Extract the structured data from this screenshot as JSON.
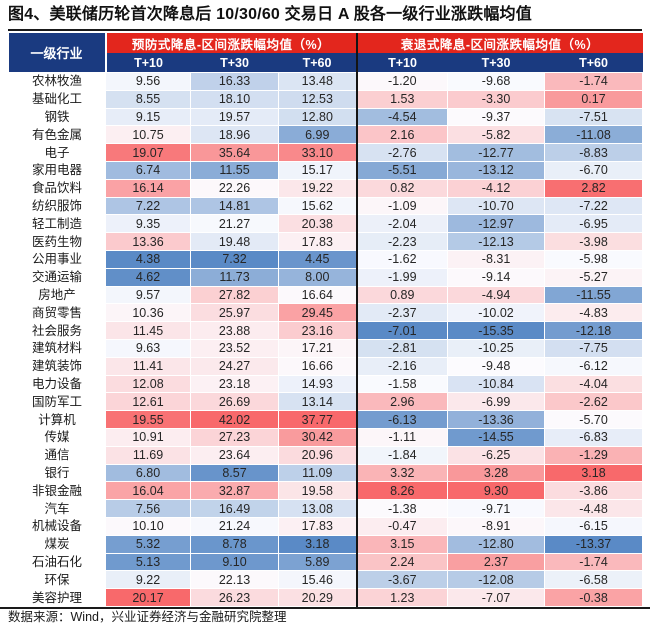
{
  "title": "图4、美联储历轮首次降息后 10/30/60 交易日 A 股各一级行业涨跌幅均值",
  "footer": "数据来源：Wind，兴业证券经济与金融研究院整理",
  "table": {
    "industry_header": "一级行业",
    "group_headers": [
      "预防式降息-区间涨跌幅均值（%）",
      "衰退式降息-区间涨跌幅均值（%）"
    ],
    "sub_headers": [
      "T+10",
      "T+30",
      "T+60",
      "T+10",
      "T+30",
      "T+60"
    ]
  },
  "colors": {
    "header_red": "#e3261d",
    "header_navy": "#1a3a80",
    "section_divider": "#141414",
    "scale_low": "#5A8AC6",
    "scale_mid": "#FCFCFF",
    "scale_high": "#F8696B"
  },
  "chart_data": {
    "type": "table",
    "title": "图4、美联储历轮首次降息后 10/30/60 交易日 A 股各一级行业涨跌幅均值",
    "column_groups": [
      "预防式降息-区间涨跌幅均值（%）",
      "衰退式降息-区间涨跌幅均值（%）"
    ],
    "columns": [
      "一级行业",
      "预防式 T+10",
      "预防式 T+30",
      "预防式 T+60",
      "衰退式 T+10",
      "衰退式 T+30",
      "衰退式 T+60"
    ],
    "heatmap": {
      "scale": "per-column",
      "midpoint": "median",
      "low": "#5A8AC6",
      "mid": "#FCFCFF",
      "high": "#F8696B"
    },
    "rows": [
      {
        "industry": "农林牧渔",
        "preventive": [
          9.56,
          16.33,
          13.48
        ],
        "recessionary": [
          -1.2,
          -9.68,
          -1.74
        ]
      },
      {
        "industry": "基础化工",
        "preventive": [
          8.55,
          18.1,
          12.53
        ],
        "recessionary": [
          1.53,
          -3.3,
          0.17
        ]
      },
      {
        "industry": "钢铁",
        "preventive": [
          9.15,
          19.57,
          12.8
        ],
        "recessionary": [
          -4.54,
          -9.37,
          -7.51
        ]
      },
      {
        "industry": "有色金属",
        "preventive": [
          10.75,
          18.96,
          6.99
        ],
        "recessionary": [
          2.16,
          -5.82,
          -11.08
        ]
      },
      {
        "industry": "电子",
        "preventive": [
          19.07,
          35.64,
          33.1
        ],
        "recessionary": [
          -2.76,
          -12.77,
          -8.83
        ]
      },
      {
        "industry": "家用电器",
        "preventive": [
          6.74,
          11.55,
          15.17
        ],
        "recessionary": [
          -5.51,
          -13.12,
          -6.7
        ]
      },
      {
        "industry": "食品饮料",
        "preventive": [
          16.14,
          22.26,
          19.22
        ],
        "recessionary": [
          0.82,
          -4.12,
          2.82
        ]
      },
      {
        "industry": "纺织服饰",
        "preventive": [
          7.22,
          14.81,
          15.62
        ],
        "recessionary": [
          -1.09,
          -10.7,
          -7.22
        ]
      },
      {
        "industry": "轻工制造",
        "preventive": [
          9.35,
          21.27,
          20.38
        ],
        "recessionary": [
          -2.04,
          -12.97,
          -6.95
        ]
      },
      {
        "industry": "医药生物",
        "preventive": [
          13.36,
          19.48,
          17.83
        ],
        "recessionary": [
          -2.23,
          -12.13,
          -3.98
        ]
      },
      {
        "industry": "公用事业",
        "preventive": [
          4.38,
          7.32,
          4.45
        ],
        "recessionary": [
          -1.62,
          -8.31,
          -5.98
        ]
      },
      {
        "industry": "交通运输",
        "preventive": [
          4.62,
          11.73,
          8.0
        ],
        "recessionary": [
          -1.99,
          -9.14,
          -5.27
        ]
      },
      {
        "industry": "房地产",
        "preventive": [
          9.57,
          27.82,
          16.64
        ],
        "recessionary": [
          0.89,
          -4.94,
          -11.55
        ]
      },
      {
        "industry": "商贸零售",
        "preventive": [
          10.36,
          25.97,
          29.45
        ],
        "recessionary": [
          -2.37,
          -10.02,
          -4.83
        ]
      },
      {
        "industry": "社会服务",
        "preventive": [
          11.45,
          23.88,
          23.16
        ],
        "recessionary": [
          -7.01,
          -15.35,
          -12.18
        ]
      },
      {
        "industry": "建筑材料",
        "preventive": [
          9.63,
          23.52,
          17.21
        ],
        "recessionary": [
          -2.81,
          -10.25,
          -7.75
        ]
      },
      {
        "industry": "建筑装饰",
        "preventive": [
          11.41,
          24.27,
          16.66
        ],
        "recessionary": [
          -2.16,
          -9.48,
          -6.12
        ]
      },
      {
        "industry": "电力设备",
        "preventive": [
          12.08,
          23.18,
          14.93
        ],
        "recessionary": [
          -1.58,
          -10.84,
          -4.04
        ]
      },
      {
        "industry": "国防军工",
        "preventive": [
          12.61,
          26.69,
          13.14
        ],
        "recessionary": [
          2.96,
          -6.99,
          -2.62
        ]
      },
      {
        "industry": "计算机",
        "preventive": [
          19.55,
          42.02,
          37.77
        ],
        "recessionary": [
          -6.13,
          -13.36,
          -5.7
        ]
      },
      {
        "industry": "传媒",
        "preventive": [
          10.91,
          27.23,
          30.42
        ],
        "recessionary": [
          -1.11,
          -14.55,
          -6.83
        ]
      },
      {
        "industry": "通信",
        "preventive": [
          11.69,
          23.64,
          20.96
        ],
        "recessionary": [
          -1.84,
          -6.25,
          -1.29
        ]
      },
      {
        "industry": "银行",
        "preventive": [
          6.8,
          8.57,
          11.09
        ],
        "recessionary": [
          3.32,
          3.28,
          3.18
        ]
      },
      {
        "industry": "非银金融",
        "preventive": [
          16.04,
          32.87,
          19.58
        ],
        "recessionary": [
          8.26,
          9.3,
          -3.86
        ]
      },
      {
        "industry": "汽车",
        "preventive": [
          7.56,
          16.49,
          13.08
        ],
        "recessionary": [
          -1.38,
          -9.71,
          -4.48
        ]
      },
      {
        "industry": "机械设备",
        "preventive": [
          10.1,
          21.24,
          17.83
        ],
        "recessionary": [
          -0.47,
          -8.91,
          -6.15
        ]
      },
      {
        "industry": "煤炭",
        "preventive": [
          5.32,
          8.78,
          3.18
        ],
        "recessionary": [
          3.15,
          -12.8,
          -13.37
        ]
      },
      {
        "industry": "石油石化",
        "preventive": [
          5.13,
          9.1,
          5.89
        ],
        "recessionary": [
          2.24,
          2.37,
          -1.74
        ]
      },
      {
        "industry": "环保",
        "preventive": [
          9.22,
          22.13,
          15.46
        ],
        "recessionary": [
          -3.67,
          -12.08,
          -6.58
        ]
      },
      {
        "industry": "美容护理",
        "preventive": [
          20.17,
          26.23,
          20.29
        ],
        "recessionary": [
          1.23,
          -7.07,
          -0.38
        ]
      }
    ]
  }
}
